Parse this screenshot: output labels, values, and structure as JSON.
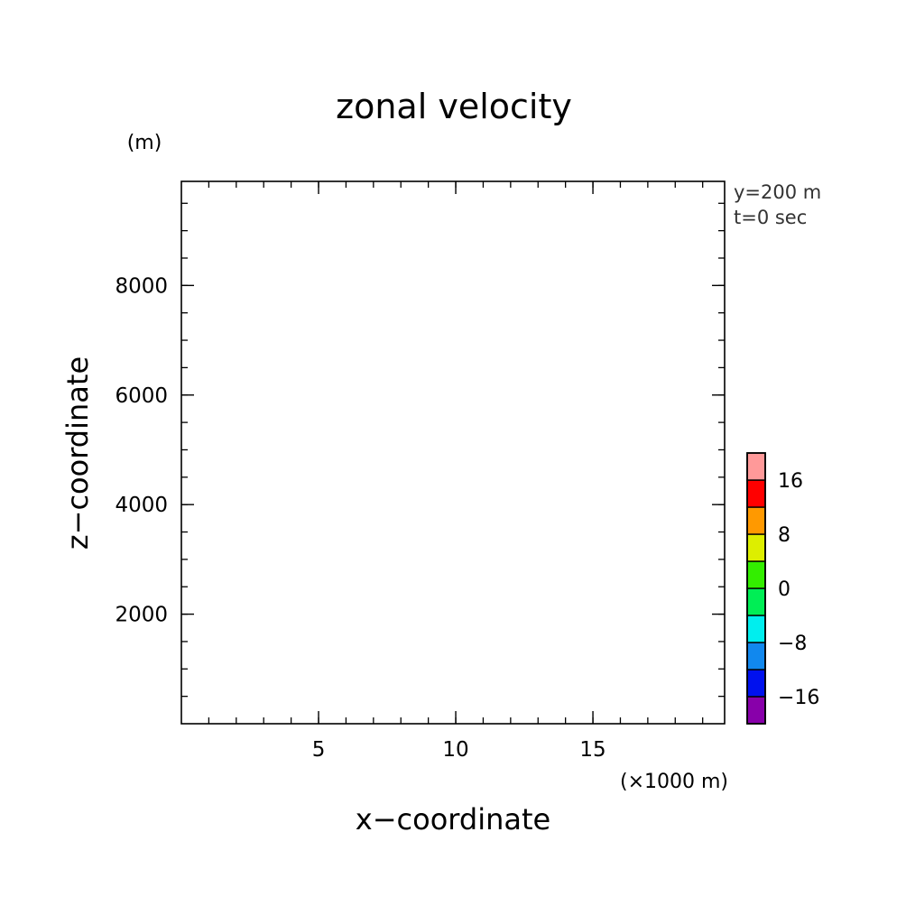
{
  "chart_data": {
    "type": "heatmap",
    "title": "zonal velocity",
    "xlabel": "x−coordinate",
    "ylabel": "z−coordinate",
    "x_unit": "(×1000 m)",
    "y_unit": "(m)",
    "annotations": [
      "y=200 m",
      "t=0 sec"
    ],
    "xlim": [
      0,
      19.8
    ],
    "ylim": [
      0,
      9900
    ],
    "x_ticks": [
      5,
      10,
      15
    ],
    "x_tick_labels": [
      "5",
      "10",
      "15"
    ],
    "y_ticks": [
      2000,
      4000,
      6000,
      8000
    ],
    "y_tick_labels": [
      "2000",
      "4000",
      "6000",
      "8000"
    ],
    "field_values": [],
    "colorbar": {
      "levels": [
        -20,
        -16,
        -12,
        -8,
        -4,
        0,
        4,
        8,
        12,
        16,
        20
      ],
      "colors": [
        "#8800aa",
        "#0011ee",
        "#1188ee",
        "#00eeee",
        "#00ee55",
        "#33ee00",
        "#ddee00",
        "#ff9900",
        "#ff0000",
        "#ff9999"
      ],
      "tick_values": [
        -16,
        -8,
        0,
        8,
        16
      ],
      "tick_labels": [
        "−16",
        "−8",
        "0",
        "8",
        "16"
      ]
    }
  }
}
